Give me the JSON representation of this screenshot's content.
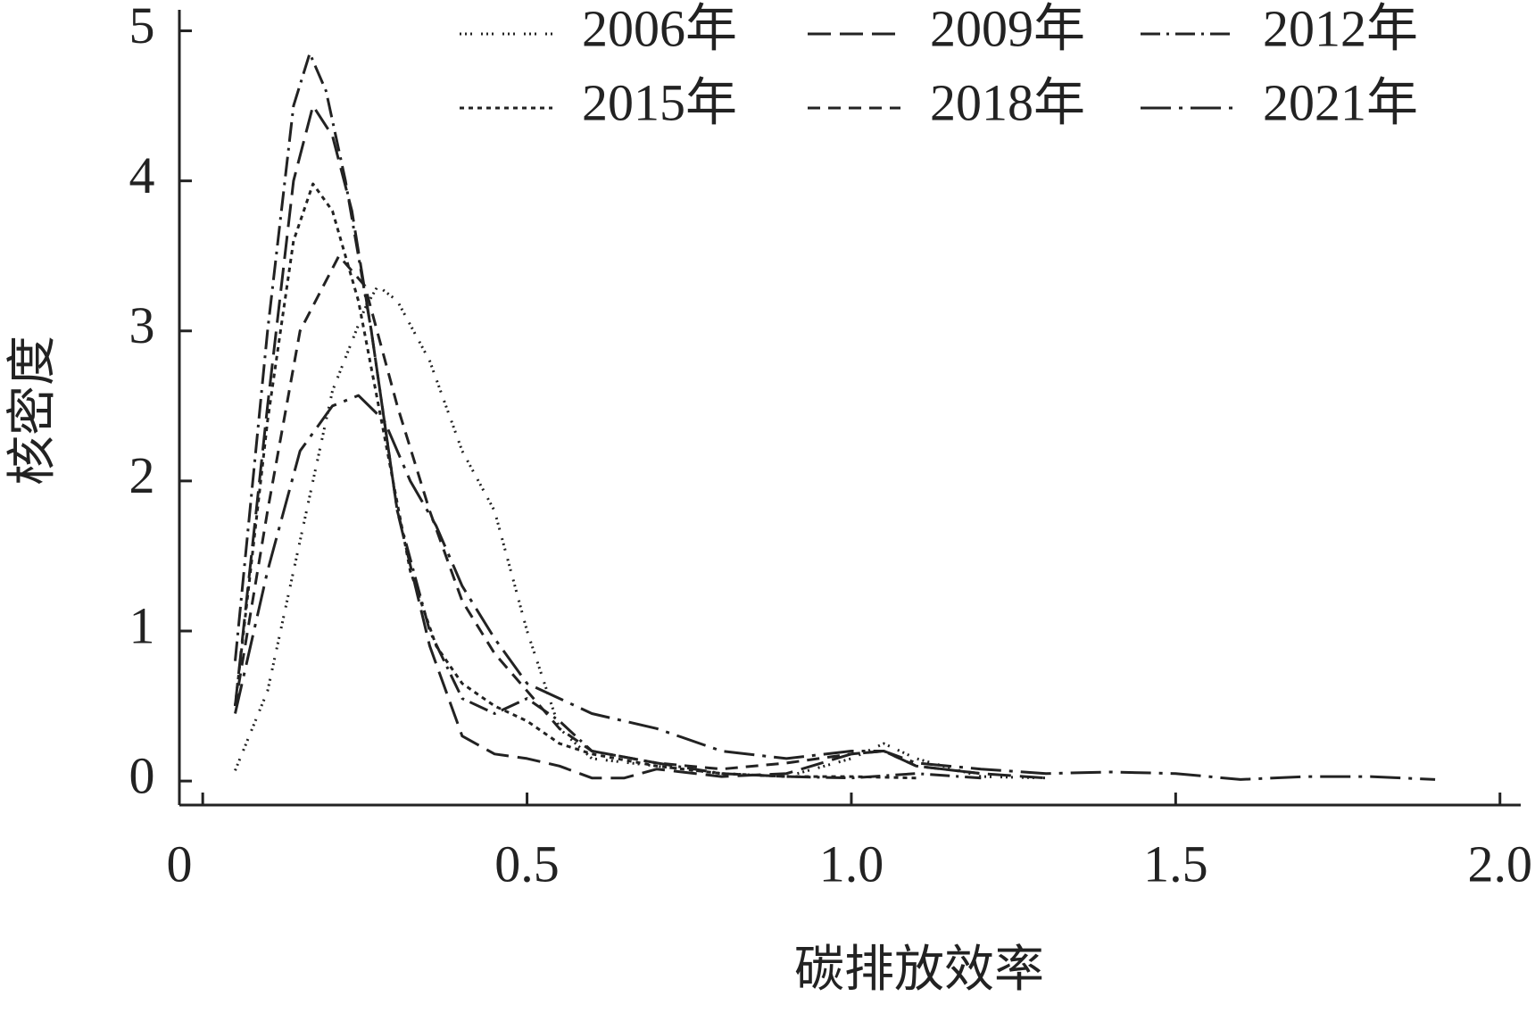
{
  "chart_data": {
    "type": "line",
    "x_label": "碳排放效率",
    "y_label": "核密度",
    "xlim": [
      -0.036,
      2.032
    ],
    "ylim": [
      -0.16,
      5.14
    ],
    "xticks": [
      0,
      0.5,
      {
        "value": 1,
        "label": "1.0"
      },
      1.5,
      {
        "value": 2,
        "label": "2.0"
      }
    ],
    "yticks": [
      0,
      1,
      2,
      3,
      4,
      5
    ],
    "grid": false,
    "legend": "top-right",
    "series": [
      {
        "name": "2006年",
        "color": "#222222",
        "dash": "2 4 2 4 2 10",
        "x": [
          0.05,
          0.1,
          0.15,
          0.2,
          0.25,
          0.27,
          0.3,
          0.35,
          0.4,
          0.45,
          0.5,
          0.55,
          0.6,
          0.7,
          0.8,
          0.9,
          1.0,
          1.05,
          1.1,
          1.2,
          1.3
        ],
        "values": [
          0.07,
          0.6,
          1.6,
          2.6,
          3.15,
          3.3,
          3.2,
          2.8,
          2.2,
          1.8,
          1.0,
          0.35,
          0.15,
          0.1,
          0.05,
          0.03,
          0.15,
          0.25,
          0.15,
          0.03,
          0.02
        ]
      },
      {
        "name": "2009年",
        "color": "#222222",
        "dash": "26 10",
        "x": [
          0.05,
          0.1,
          0.14,
          0.17,
          0.2,
          0.23,
          0.26,
          0.3,
          0.35,
          0.4,
          0.45,
          0.5,
          0.55,
          0.6,
          0.65,
          0.7,
          0.8,
          0.9,
          1.0,
          1.05,
          1.1,
          1.2,
          1.3
        ],
        "values": [
          0.5,
          2.5,
          4.0,
          4.5,
          4.3,
          3.8,
          3.0,
          1.8,
          0.9,
          0.3,
          0.18,
          0.15,
          0.1,
          0.02,
          0.02,
          0.08,
          0.03,
          0.05,
          0.18,
          0.2,
          0.1,
          0.05,
          0.02
        ]
      },
      {
        "name": "2012年",
        "color": "#222222",
        "dash": "22 7 3 7",
        "x": [
          0.05,
          0.1,
          0.14,
          0.165,
          0.19,
          0.22,
          0.26,
          0.3,
          0.35,
          0.4,
          0.45,
          0.5,
          0.55,
          0.6,
          0.7,
          0.8,
          0.9,
          1.0,
          1.1,
          1.2
        ],
        "values": [
          0.8,
          3.0,
          4.5,
          4.85,
          4.6,
          4.0,
          3.0,
          1.8,
          1.0,
          0.55,
          0.45,
          0.55,
          0.4,
          0.2,
          0.12,
          0.05,
          0.03,
          0.02,
          0.05,
          0.02
        ]
      },
      {
        "name": "2015年",
        "color": "#222222",
        "dash": "5 5",
        "x": [
          0.05,
          0.1,
          0.14,
          0.17,
          0.2,
          0.24,
          0.28,
          0.32,
          0.36,
          0.4,
          0.45,
          0.5,
          0.55,
          0.6,
          0.7,
          0.8,
          0.9,
          1.0,
          1.1
        ],
        "values": [
          0.5,
          2.4,
          3.6,
          3.98,
          3.8,
          3.2,
          2.3,
          1.4,
          0.9,
          0.65,
          0.5,
          0.4,
          0.25,
          0.18,
          0.1,
          0.05,
          0.03,
          0.03,
          0.02
        ]
      },
      {
        "name": "2018年",
        "color": "#222222",
        "dash": "14 9",
        "x": [
          0.05,
          0.1,
          0.15,
          0.21,
          0.25,
          0.3,
          0.35,
          0.4,
          0.45,
          0.5,
          0.55,
          0.6,
          0.7,
          0.8,
          0.9,
          1.0,
          1.05,
          1.1,
          1.2
        ],
        "values": [
          0.5,
          1.8,
          3.0,
          3.5,
          3.3,
          2.5,
          1.8,
          1.2,
          0.85,
          0.6,
          0.35,
          0.2,
          0.12,
          0.08,
          0.12,
          0.18,
          0.2,
          0.1,
          0.05
        ]
      },
      {
        "name": "2021年",
        "color": "#222222",
        "dash": "34 9 4 9",
        "x": [
          0.05,
          0.1,
          0.15,
          0.2,
          0.24,
          0.28,
          0.32,
          0.36,
          0.4,
          0.45,
          0.5,
          0.55,
          0.6,
          0.7,
          0.8,
          0.9,
          1.0,
          1.05,
          1.1,
          1.2,
          1.3,
          1.4,
          1.5,
          1.6,
          1.7,
          1.8,
          1.9
        ],
        "values": [
          0.45,
          1.4,
          2.2,
          2.5,
          2.57,
          2.4,
          2.0,
          1.7,
          1.3,
          0.95,
          0.65,
          0.55,
          0.45,
          0.35,
          0.2,
          0.15,
          0.2,
          0.2,
          0.12,
          0.08,
          0.05,
          0.06,
          0.05,
          0.01,
          0.03,
          0.03,
          0.01
        ]
      }
    ]
  }
}
